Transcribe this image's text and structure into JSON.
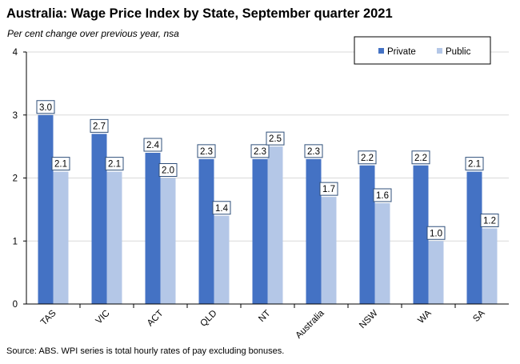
{
  "title": "Australia: Wage Price Index by State, September quarter 2021",
  "subtitle": "Per cent change over previous year, nsa",
  "source": "Source: ABS.  WPI series is total hourly rates of pay excluding bonuses.",
  "colors": {
    "private": "#4472c4",
    "public": "#b4c7e7",
    "grid": "#d9d9d9"
  },
  "chart_data": {
    "type": "bar",
    "categories": [
      "TAS",
      "VIC",
      "ACT",
      "QLD",
      "NT",
      "Australia",
      "NSW",
      "WA",
      "SA"
    ],
    "series": [
      {
        "name": "Private",
        "values": [
          3.0,
          2.7,
          2.4,
          2.3,
          2.3,
          2.3,
          2.2,
          2.2,
          2.1
        ]
      },
      {
        "name": "Public",
        "values": [
          2.1,
          2.1,
          2.0,
          1.4,
          2.5,
          1.7,
          1.6,
          1.0,
          1.2
        ]
      }
    ],
    "yticks": [
      "0",
      "1",
      "2",
      "3",
      "4"
    ],
    "ylim": [
      0,
      4
    ],
    "grid": true,
    "legend": "top-right",
    "data_labels": true
  }
}
